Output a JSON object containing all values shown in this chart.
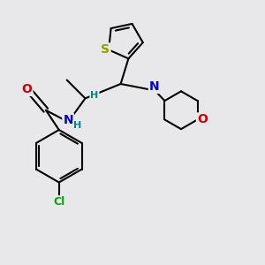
{
  "bg_color": "#e8e8ea",
  "bond_color": "#000000",
  "bond_width": 1.5,
  "atom_colors": {
    "S": "#999900",
    "N": "#0000cc",
    "O": "#cc0000",
    "Cl": "#00aa00",
    "C": "#000000",
    "H": "#008888"
  },
  "font_size": 9,
  "fig_size": [
    3.0,
    3.0
  ],
  "dpi": 100
}
